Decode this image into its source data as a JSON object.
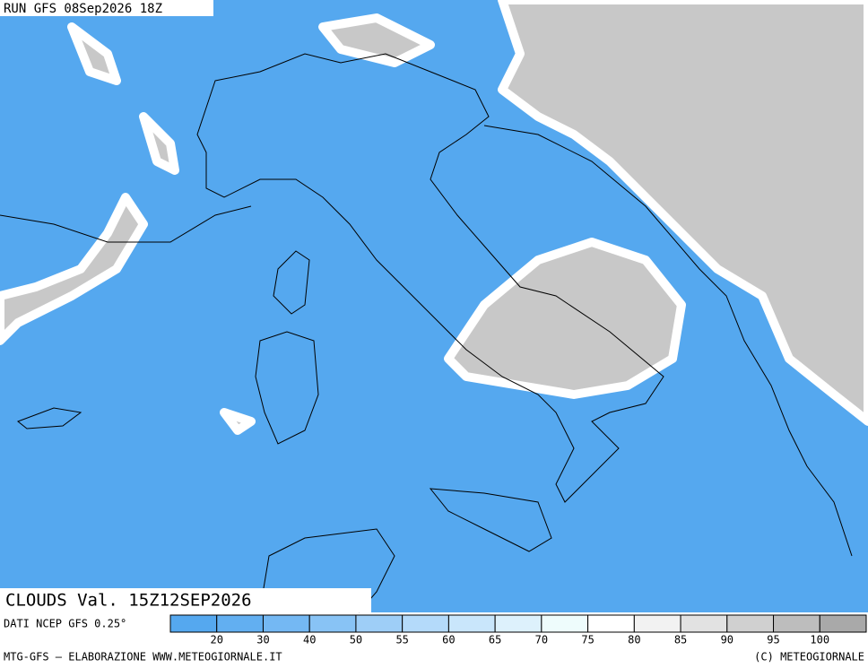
{
  "header": {
    "run": "RUN GFS 08Sep2026 18Z"
  },
  "map": {
    "label": "CLOUDS Val. 15Z12SEP2026",
    "source": "DATI NCEP GFS 0.25°"
  },
  "legend": {
    "levels": [
      20,
      30,
      40,
      50,
      55,
      60,
      65,
      70,
      75,
      80,
      85,
      90,
      95,
      100
    ],
    "colors": [
      "#55a8ef",
      "#62aff1",
      "#74b8f3",
      "#88c3f5",
      "#9ecef7",
      "#b4dafa",
      "#c9e6fb",
      "#ddf1fc",
      "#eefcfc",
      "#ffffff",
      "#f2f2f2",
      "#e2e2e2",
      "#d0d0d0",
      "#bdbdbd",
      "#a9a9a9"
    ]
  },
  "footer": {
    "left": "MTG-GFS — ELABORAZIONE WWW.METEOGIORNALE.IT",
    "right": "(C) METEOGIORNALE"
  }
}
